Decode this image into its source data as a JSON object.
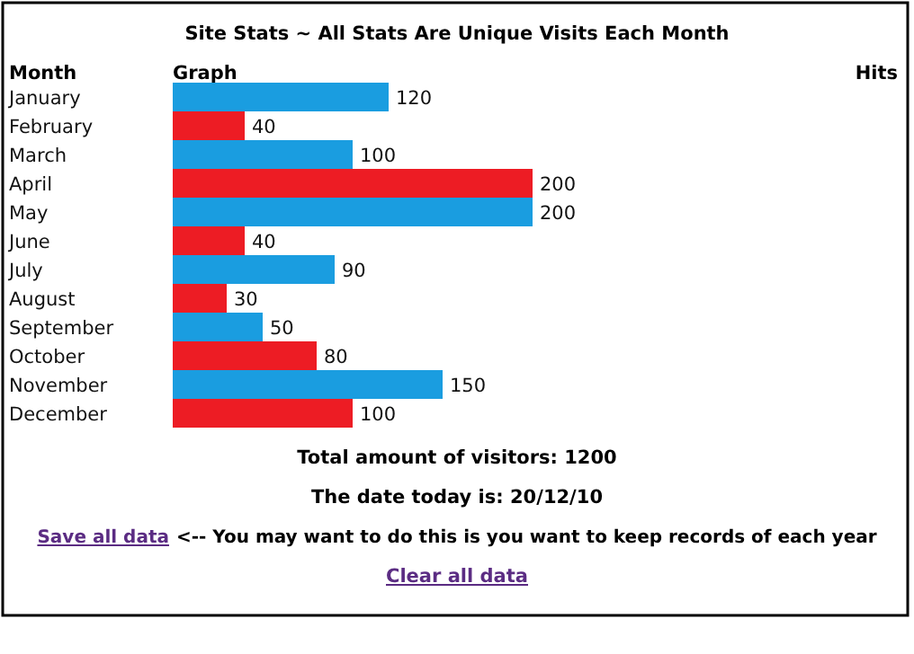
{
  "chart_data": {
    "type": "bar",
    "orientation": "horizontal",
    "title": "Site Stats ~ All Stats Are Unique Visits Each Month",
    "ylabel": "Month",
    "xlabel": "Graph",
    "categories": [
      "January",
      "February",
      "March",
      "April",
      "May",
      "June",
      "July",
      "August",
      "September",
      "October",
      "November",
      "December"
    ],
    "values": [
      120,
      40,
      100,
      200,
      200,
      40,
      90,
      30,
      50,
      80,
      150,
      100
    ],
    "colors": [
      "#1a9de0",
      "#ed1c24",
      "#1a9de0",
      "#ed1c24",
      "#1a9de0",
      "#ed1c24",
      "#1a9de0",
      "#ed1c24",
      "#1a9de0",
      "#ed1c24",
      "#1a9de0",
      "#ed1c24"
    ],
    "data_labels": true,
    "annotations": [
      "Hits",
      "Total amount of visitors: 1200",
      "The date today is: 20/12/10",
      "Save all data",
      "<-- You may want to do this is you want to keep records of each year",
      "Clear all data"
    ]
  }
}
